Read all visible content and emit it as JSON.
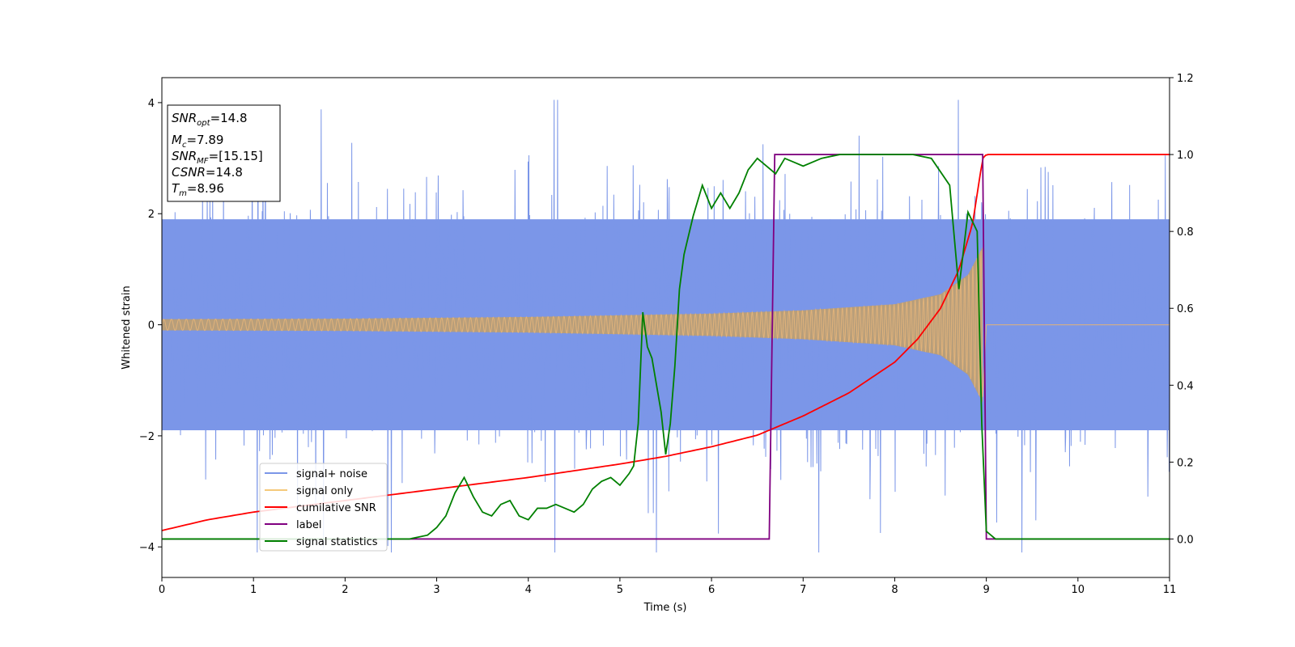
{
  "chart_data": {
    "type": "line",
    "xlabel": "Time (s)",
    "ylabel_left": "Whitened strain",
    "ylabel_right": "",
    "xlim": [
      0,
      11
    ],
    "ylim_left": [
      -4.55,
      4.45
    ],
    "ylim_right": [
      -0.1,
      1.2
    ],
    "x_ticks": [
      0,
      1,
      2,
      3,
      4,
      5,
      6,
      7,
      8,
      9,
      10,
      11
    ],
    "y_ticks_left": [
      -4,
      -2,
      0,
      2,
      4
    ],
    "y_ticks_right": [
      0.0,
      0.2,
      0.4,
      0.6,
      0.8,
      1.0,
      1.2
    ],
    "x_tick_labels": [
      "0",
      "1",
      "2",
      "3",
      "4",
      "5",
      "6",
      "7",
      "8",
      "9",
      "10",
      "11"
    ],
    "y_tick_labels_left": [
      "−4",
      "−2",
      "0",
      "2",
      "4"
    ],
    "y_tick_labels_right": [
      "0.0",
      "0.2",
      "0.4",
      "0.6",
      "0.8",
      "1.0",
      "1.2"
    ],
    "grid": false,
    "legend_position": "lower-left",
    "info_box": {
      "snr_opt": "=14.8",
      "mc": "=7.89",
      "snr_mf": "=[15.15]",
      "csnr": "=14.8",
      "tm": "=8.96"
    },
    "series": [
      {
        "name": "signal+ noise",
        "axis": "left",
        "color": "#7b96e8",
        "description": "whitened noise with standard deviation ~1, peaks up to about ±4 across 0–11 s",
        "noise_std": 1.0
      },
      {
        "name": "signal only",
        "axis": "left",
        "color": "#f5c97a",
        "description": "chirp waveform growing in amplitude and frequency until merger at ~8.96 s, zero afterwards",
        "envelope": {
          "t": [
            0,
            2,
            4,
            6,
            7,
            8,
            8.5,
            8.8,
            8.96,
            9.0,
            11
          ],
          "amp": [
            0.1,
            0.11,
            0.14,
            0.2,
            0.26,
            0.37,
            0.55,
            0.9,
            1.4,
            0,
            0
          ]
        }
      },
      {
        "name": "cumilative SNR",
        "axis": "right",
        "color": "#ff0000",
        "x": [
          0,
          0.5,
          1,
          1.5,
          2,
          3,
          4,
          5,
          5.5,
          6,
          6.5,
          7,
          7.5,
          8,
          8.25,
          8.5,
          8.7,
          8.85,
          8.96,
          9.0,
          10,
          11
        ],
        "y": [
          0.022,
          0.05,
          0.07,
          0.085,
          0.1,
          0.13,
          0.16,
          0.195,
          0.215,
          0.24,
          0.27,
          0.32,
          0.38,
          0.46,
          0.52,
          0.6,
          0.7,
          0.82,
          0.99,
          1.0,
          1.0,
          1.0
        ]
      },
      {
        "name": "label",
        "axis": "right",
        "color": "#800080",
        "x": [
          0,
          6.63,
          6.69,
          8.96,
          9.0,
          11
        ],
        "y": [
          0,
          0,
          1,
          1,
          0,
          0
        ]
      },
      {
        "name": "signal statistics",
        "axis": "right",
        "color": "#008000",
        "x": [
          0,
          2.7,
          2.9,
          3.0,
          3.1,
          3.2,
          3.3,
          3.4,
          3.5,
          3.6,
          3.7,
          3.8,
          3.9,
          4.0,
          4.1,
          4.2,
          4.3,
          4.4,
          4.5,
          4.6,
          4.7,
          4.8,
          4.9,
          5.0,
          5.1,
          5.15,
          5.2,
          5.25,
          5.3,
          5.35,
          5.45,
          5.5,
          5.55,
          5.6,
          5.65,
          5.7,
          5.8,
          5.9,
          6.0,
          6.1,
          6.2,
          6.3,
          6.4,
          6.5,
          6.6,
          6.7,
          6.8,
          6.9,
          7.0,
          7.2,
          7.4,
          7.6,
          7.8,
          8.0,
          8.2,
          8.4,
          8.6,
          8.7,
          8.8,
          8.9,
          8.95,
          9.0,
          9.1,
          10,
          11
        ],
        "y": [
          0,
          0,
          0.01,
          0.03,
          0.06,
          0.12,
          0.16,
          0.11,
          0.07,
          0.06,
          0.09,
          0.1,
          0.06,
          0.05,
          0.08,
          0.08,
          0.09,
          0.08,
          0.07,
          0.09,
          0.13,
          0.15,
          0.16,
          0.14,
          0.17,
          0.19,
          0.3,
          0.59,
          0.5,
          0.47,
          0.33,
          0.22,
          0.3,
          0.45,
          0.65,
          0.74,
          0.84,
          0.92,
          0.86,
          0.9,
          0.86,
          0.9,
          0.96,
          0.99,
          0.97,
          0.95,
          0.99,
          0.98,
          0.97,
          0.99,
          1.0,
          1.0,
          1.0,
          1.0,
          1.0,
          0.99,
          0.92,
          0.65,
          0.85,
          0.8,
          0.3,
          0.02,
          0.0,
          0.0,
          0.0
        ]
      }
    ]
  }
}
